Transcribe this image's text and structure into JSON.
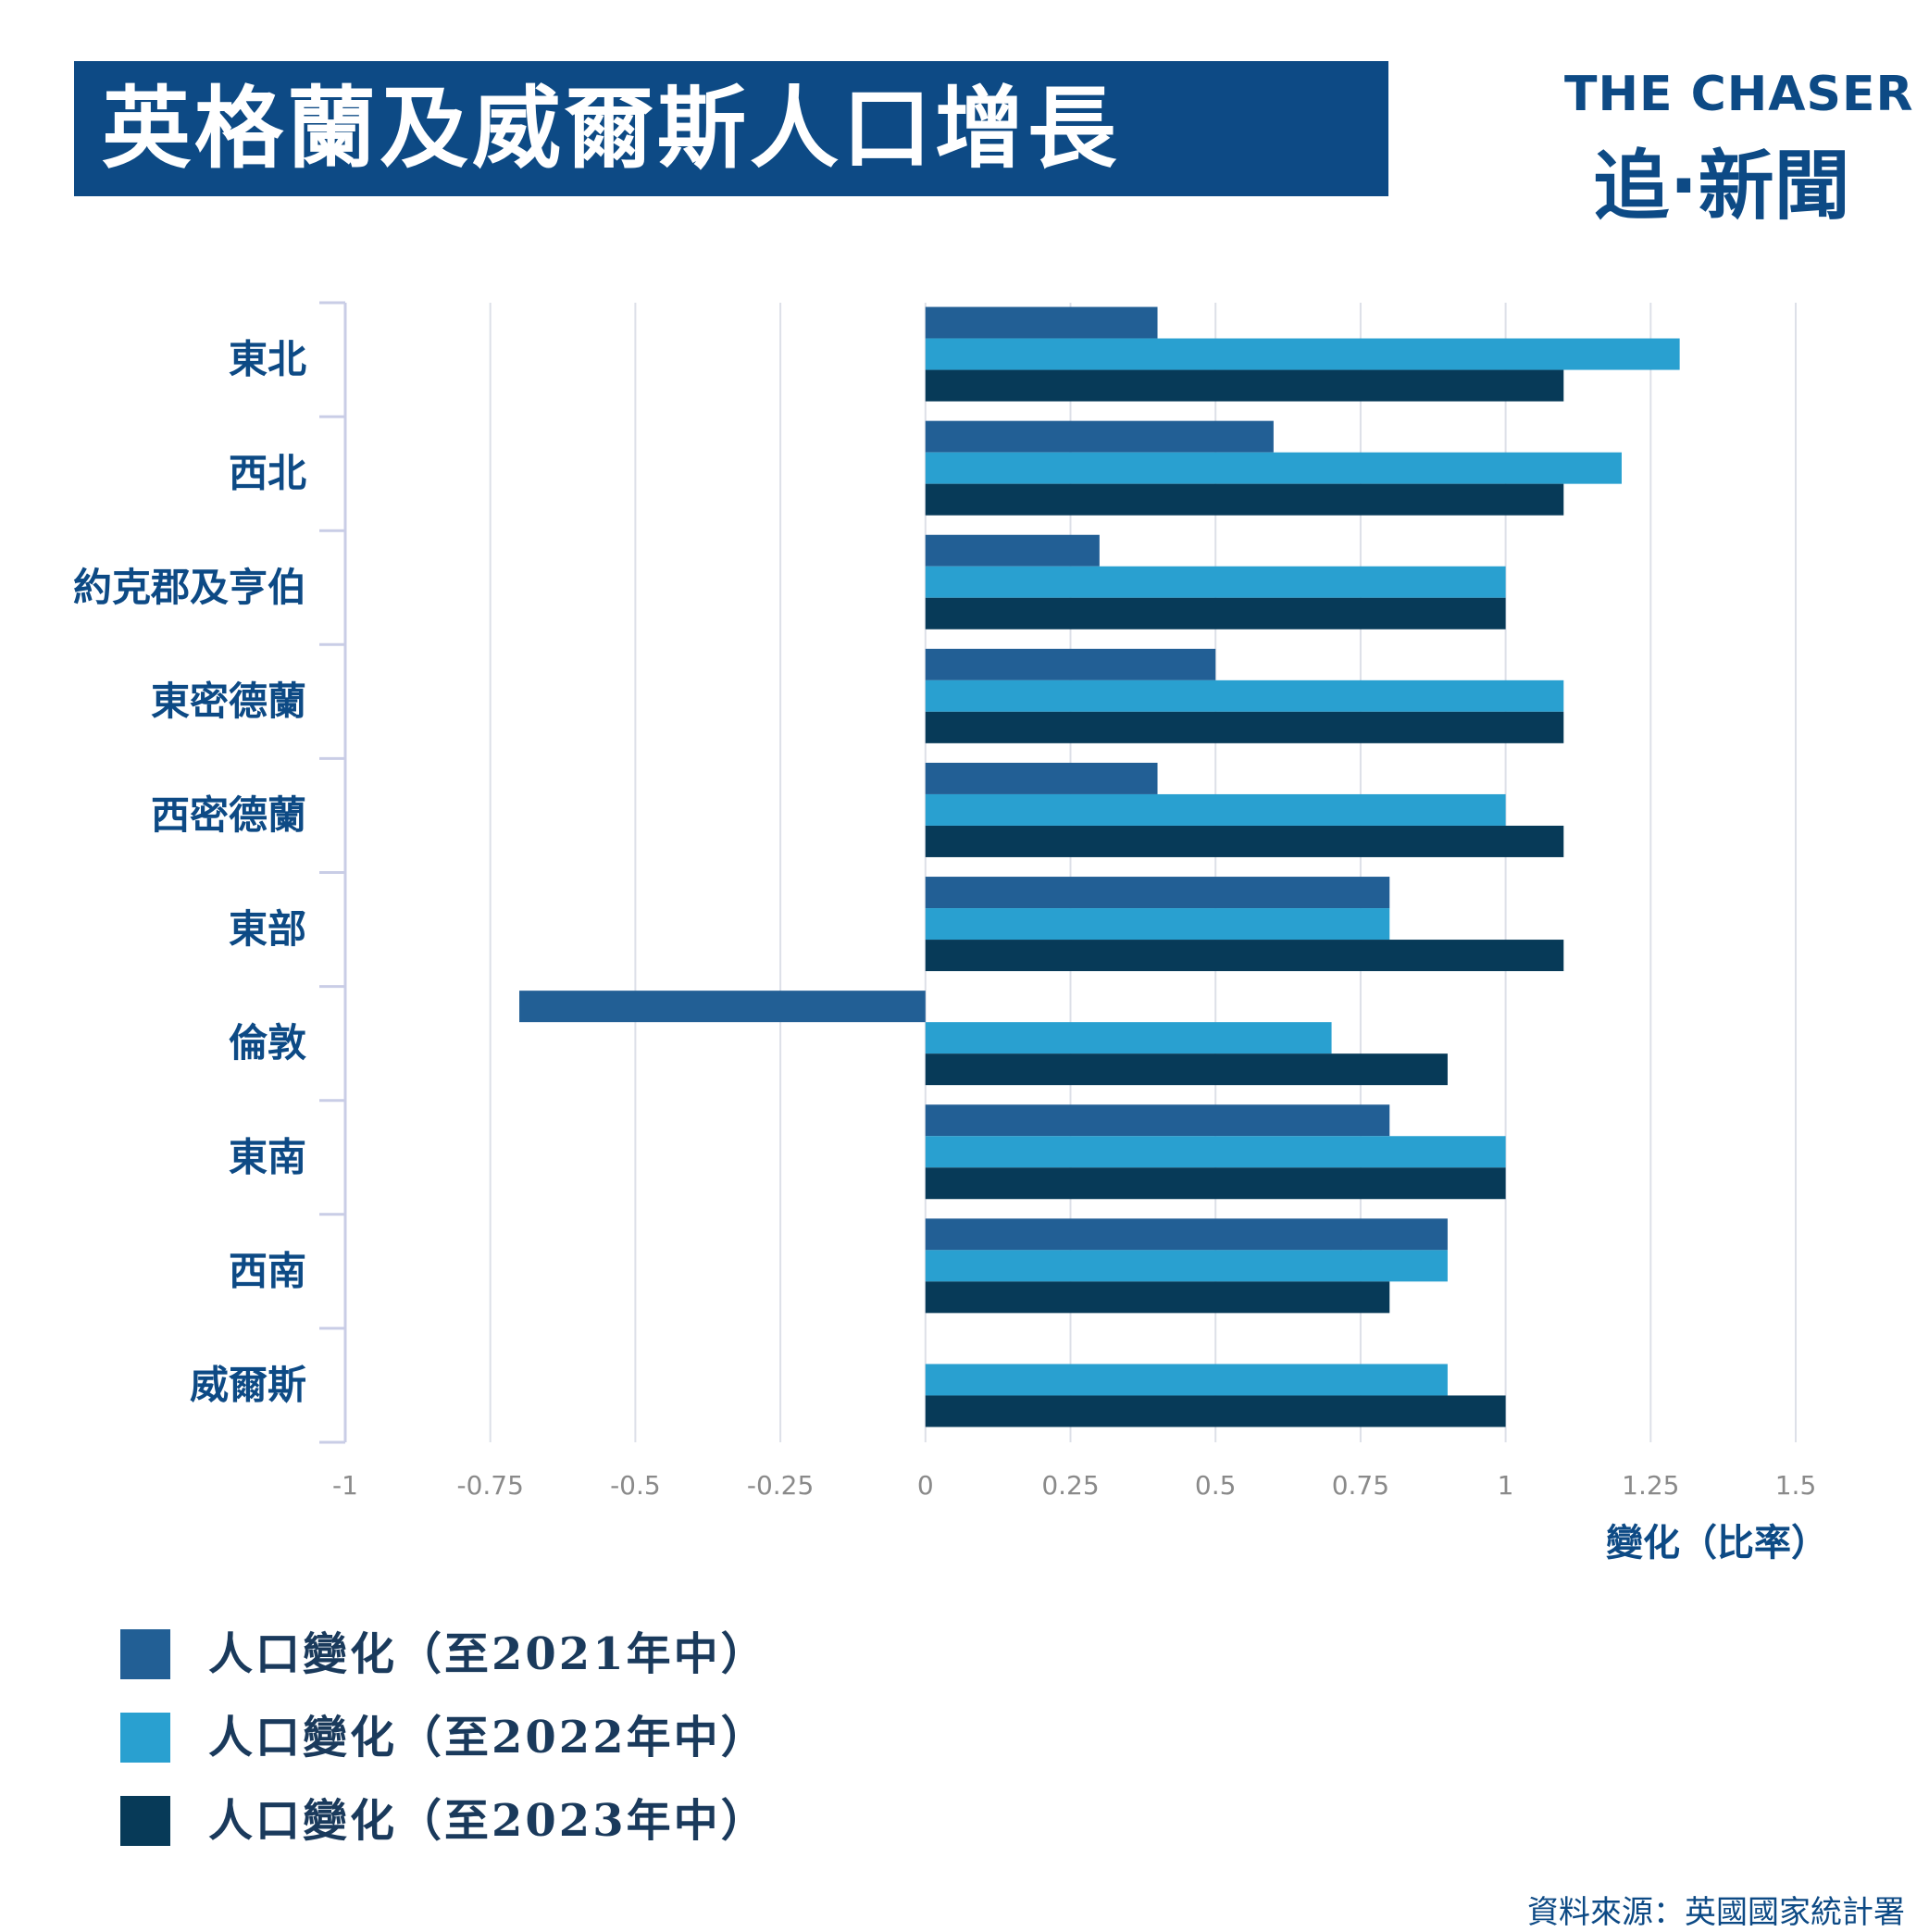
{
  "title": "英格蘭及威爾斯人口增長",
  "logo": {
    "line1": "THE CHASER",
    "line2": "追·新聞"
  },
  "colors": {
    "brand": "#0d4a85",
    "s2021": "#225f95",
    "s2022": "#29a0d0",
    "s2023": "#073a58",
    "grid": "#dde0e8"
  },
  "chart_data": {
    "type": "bar",
    "orientation": "horizontal",
    "categories": [
      "東北",
      "西北",
      "約克郡及亨伯",
      "東密德蘭",
      "西密德蘭",
      "東部",
      "倫敦",
      "東南",
      "西南",
      "威爾斯"
    ],
    "series": [
      {
        "name": "人口變化（至2021年中）",
        "values": [
          0.4,
          0.6,
          0.3,
          0.5,
          0.4,
          0.8,
          -0.7,
          0.8,
          0.9,
          0
        ]
      },
      {
        "name": "人口變化（至2022年中）",
        "values": [
          1.3,
          1.2,
          1.0,
          1.1,
          1.0,
          0.8,
          0.7,
          1.0,
          0.9,
          0.9
        ]
      },
      {
        "name": "人口變化（至2023年中）",
        "values": [
          1.1,
          1.1,
          1.0,
          1.1,
          1.1,
          1.1,
          0.9,
          1.0,
          0.8,
          1.0
        ]
      }
    ],
    "xlim": [
      -1,
      1.5
    ],
    "xticks": [
      -1,
      -0.75,
      -0.5,
      -0.25,
      0,
      0.25,
      0.5,
      0.75,
      1,
      1.25,
      1.5
    ],
    "xtick_labels": [
      "-1",
      "-0.75",
      "-0.5",
      "-0.25",
      "0",
      "0.25",
      "0.5",
      "0.75",
      "1",
      "1.25",
      "1.5"
    ],
    "xlabel": "變化（比率）",
    "grid": true,
    "legend_position": "bottom-left"
  },
  "source": "資料來源：英國國家統計署"
}
